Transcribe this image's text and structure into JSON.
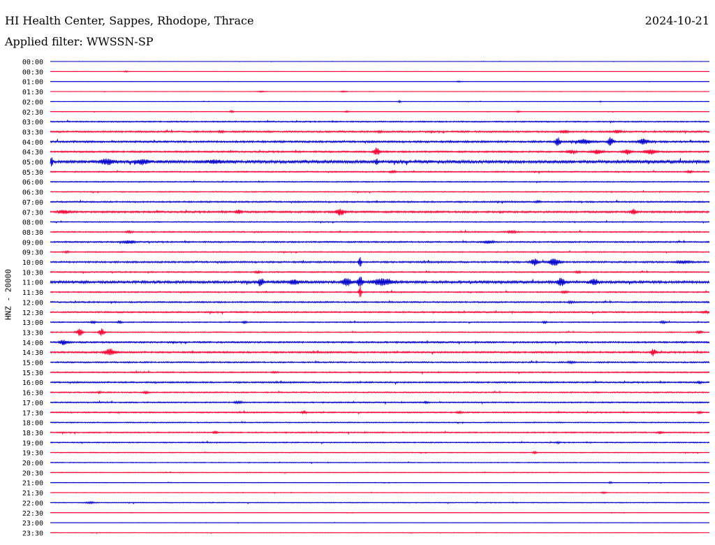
{
  "header": {
    "title": "HI Health Center, Sappes, Rhodope, Thrace",
    "date": "2024-10-21",
    "filter": "Applied filter: WWSSN-SP",
    "ylabel": "HNZ - 20000"
  },
  "chart_data": {
    "type": "line",
    "colors": [
      "#0000cc",
      "#ff0033"
    ],
    "rows": [
      {
        "time": "00:00",
        "noise": 0.3,
        "events": []
      },
      {
        "time": "00:30",
        "noise": 0.3,
        "events": [
          {
            "x": 0.115,
            "amp": 2,
            "w": 0.003
          }
        ]
      },
      {
        "time": "01:00",
        "noise": 0.3,
        "events": [
          {
            "x": 0.62,
            "amp": 1.5,
            "w": 0.004
          }
        ]
      },
      {
        "time": "01:30",
        "noise": 0.4,
        "events": [
          {
            "x": 0.32,
            "amp": 1.5,
            "w": 0.006
          },
          {
            "x": 0.445,
            "amp": 2,
            "w": 0.004
          }
        ]
      },
      {
        "time": "02:00",
        "noise": 0.5,
        "events": [
          {
            "x": 0.53,
            "amp": 3,
            "w": 0.002
          },
          {
            "x": 0.835,
            "amp": 1.5,
            "w": 0.002
          }
        ]
      },
      {
        "time": "02:30",
        "noise": 0.5,
        "events": [
          {
            "x": 0.275,
            "amp": 3,
            "w": 0.003
          },
          {
            "x": 0.45,
            "amp": 2,
            "w": 0.003
          },
          {
            "x": 0.71,
            "amp": 2,
            "w": 0.003
          }
        ]
      },
      {
        "time": "03:00",
        "noise": 1.2,
        "events": []
      },
      {
        "time": "03:30",
        "noise": 1.6,
        "events": [
          {
            "x": 0.26,
            "amp": 3,
            "w": 0.004
          },
          {
            "x": 0.5,
            "amp": 3,
            "w": 0.003
          },
          {
            "x": 0.78,
            "amp": 4,
            "w": 0.006
          },
          {
            "x": 0.86,
            "amp": 4,
            "w": 0.006
          }
        ]
      },
      {
        "time": "04:00",
        "noise": 1.8,
        "events": [
          {
            "x": 0.77,
            "amp": 12,
            "w": 0.004
          },
          {
            "x": 0.81,
            "amp": 6,
            "w": 0.01
          },
          {
            "x": 0.85,
            "amp": 12,
            "w": 0.004
          },
          {
            "x": 0.9,
            "amp": 7,
            "w": 0.008
          }
        ]
      },
      {
        "time": "04:30",
        "noise": 1.6,
        "events": [
          {
            "x": 0.495,
            "amp": 14,
            "w": 0.004
          },
          {
            "x": 0.79,
            "amp": 5,
            "w": 0.006
          },
          {
            "x": 0.83,
            "amp": 6,
            "w": 0.008
          },
          {
            "x": 0.875,
            "amp": 7,
            "w": 0.006
          },
          {
            "x": 0.91,
            "amp": 8,
            "w": 0.008
          }
        ]
      },
      {
        "time": "05:00",
        "noise": 3.0,
        "events": [
          {
            "x": 0.002,
            "amp": 12,
            "w": 0.002
          },
          {
            "x": 0.086,
            "amp": 7,
            "w": 0.01
          },
          {
            "x": 0.14,
            "amp": 7,
            "w": 0.01
          },
          {
            "x": 0.25,
            "amp": 4,
            "w": 0.01
          },
          {
            "x": 0.495,
            "amp": 9,
            "w": 0.002
          }
        ]
      },
      {
        "time": "05:30",
        "noise": 1.2,
        "events": [
          {
            "x": 0.52,
            "amp": 4,
            "w": 0.004
          },
          {
            "x": 0.97,
            "amp": 3,
            "w": 0.004
          }
        ]
      },
      {
        "time": "06:00",
        "noise": 1.0,
        "events": []
      },
      {
        "time": "06:30",
        "noise": 1.0,
        "events": []
      },
      {
        "time": "07:00",
        "noise": 1.4,
        "events": [
          {
            "x": 0.74,
            "amp": 3,
            "w": 0.003
          }
        ]
      },
      {
        "time": "07:30",
        "noise": 1.8,
        "events": [
          {
            "x": 0.02,
            "amp": 5,
            "w": 0.008
          },
          {
            "x": 0.285,
            "amp": 6,
            "w": 0.004
          },
          {
            "x": 0.44,
            "amp": 10,
            "w": 0.006
          },
          {
            "x": 0.885,
            "amp": 8,
            "w": 0.004
          }
        ]
      },
      {
        "time": "08:00",
        "noise": 1.0,
        "events": []
      },
      {
        "time": "08:30",
        "noise": 1.2,
        "events": [
          {
            "x": 0.12,
            "amp": 3,
            "w": 0.004
          },
          {
            "x": 0.7,
            "amp": 3,
            "w": 0.008
          }
        ]
      },
      {
        "time": "09:00",
        "noise": 1.4,
        "events": [
          {
            "x": 0.12,
            "amp": 5,
            "w": 0.008
          },
          {
            "x": 0.665,
            "amp": 4,
            "w": 0.008
          }
        ]
      },
      {
        "time": "09:30",
        "noise": 1.0,
        "events": [
          {
            "x": 0.025,
            "amp": 3,
            "w": 0.003
          }
        ]
      },
      {
        "time": "10:00",
        "noise": 1.6,
        "events": [
          {
            "x": 0.47,
            "amp": 18,
            "w": 0.002
          },
          {
            "x": 0.735,
            "amp": 9,
            "w": 0.006
          },
          {
            "x": 0.765,
            "amp": 10,
            "w": 0.008
          },
          {
            "x": 0.96,
            "amp": 4,
            "w": 0.01
          }
        ]
      },
      {
        "time": "10:30",
        "noise": 1.2,
        "events": [
          {
            "x": 0.315,
            "amp": 3,
            "w": 0.004
          },
          {
            "x": 0.8,
            "amp": 3,
            "w": 0.004
          }
        ]
      },
      {
        "time": "11:00",
        "noise": 2.4,
        "events": [
          {
            "x": 0.32,
            "amp": 12,
            "w": 0.004
          },
          {
            "x": 0.37,
            "amp": 7,
            "w": 0.008
          },
          {
            "x": 0.45,
            "amp": 14,
            "w": 0.006
          },
          {
            "x": 0.47,
            "amp": 16,
            "w": 0.004
          },
          {
            "x": 0.505,
            "amp": 10,
            "w": 0.014
          },
          {
            "x": 0.775,
            "amp": 10,
            "w": 0.006
          },
          {
            "x": 0.825,
            "amp": 8,
            "w": 0.006
          }
        ]
      },
      {
        "time": "11:30",
        "noise": 1.2,
        "events": [
          {
            "x": 0.47,
            "amp": 20,
            "w": 0.002
          },
          {
            "x": 0.78,
            "amp": 4,
            "w": 0.004
          }
        ]
      },
      {
        "time": "12:00",
        "noise": 1.4,
        "events": [
          {
            "x": 0.79,
            "amp": 3,
            "w": 0.004
          }
        ]
      },
      {
        "time": "12:30",
        "noise": 1.4,
        "events": [
          {
            "x": 0.995,
            "amp": 4,
            "w": 0.004
          }
        ]
      },
      {
        "time": "13:00",
        "noise": 1.0,
        "events": [
          {
            "x": 0.065,
            "amp": 3,
            "w": 0.004
          },
          {
            "x": 0.105,
            "amp": 4,
            "w": 0.003
          },
          {
            "x": 0.295,
            "amp": 3,
            "w": 0.003
          },
          {
            "x": 0.75,
            "amp": 3,
            "w": 0.003
          },
          {
            "x": 0.93,
            "amp": 3,
            "w": 0.004
          }
        ]
      },
      {
        "time": "13:30",
        "noise": 1.0,
        "events": [
          {
            "x": 0.045,
            "amp": 12,
            "w": 0.004
          },
          {
            "x": 0.078,
            "amp": 10,
            "w": 0.004
          },
          {
            "x": 0.985,
            "amp": 4,
            "w": 0.004
          }
        ]
      },
      {
        "time": "14:00",
        "noise": 1.6,
        "events": [
          {
            "x": 0.02,
            "amp": 7,
            "w": 0.006
          }
        ]
      },
      {
        "time": "14:30",
        "noise": 1.6,
        "events": [
          {
            "x": 0.09,
            "amp": 9,
            "w": 0.008
          },
          {
            "x": 0.915,
            "amp": 10,
            "w": 0.004
          }
        ]
      },
      {
        "time": "15:00",
        "noise": 1.4,
        "events": [
          {
            "x": 0.79,
            "amp": 3,
            "w": 0.004
          }
        ]
      },
      {
        "time": "15:30",
        "noise": 1.2,
        "events": [
          {
            "x": 0.34,
            "amp": 2,
            "w": 0.004
          }
        ]
      },
      {
        "time": "16:00",
        "noise": 1.4,
        "events": [
          {
            "x": 0.985,
            "amp": 4,
            "w": 0.003
          }
        ]
      },
      {
        "time": "16:30",
        "noise": 1.2,
        "events": [
          {
            "x": 0.145,
            "amp": 4,
            "w": 0.003
          },
          {
            "x": 0.075,
            "amp": 3,
            "w": 0.003
          }
        ]
      },
      {
        "time": "17:00",
        "noise": 1.2,
        "events": [
          {
            "x": 0.285,
            "amp": 3,
            "w": 0.006
          },
          {
            "x": 0.57,
            "amp": 3,
            "w": 0.003
          }
        ]
      },
      {
        "time": "17:30",
        "noise": 1.2,
        "events": [
          {
            "x": 0.385,
            "amp": 5,
            "w": 0.003
          },
          {
            "x": 0.62,
            "amp": 3,
            "w": 0.004
          },
          {
            "x": 0.985,
            "amp": 3,
            "w": 0.003
          }
        ]
      },
      {
        "time": "18:00",
        "noise": 1.0,
        "events": []
      },
      {
        "time": "18:30",
        "noise": 1.2,
        "events": [
          {
            "x": 0.25,
            "amp": 4,
            "w": 0.003
          },
          {
            "x": 0.925,
            "amp": 3,
            "w": 0.003
          }
        ]
      },
      {
        "time": "19:00",
        "noise": 1.0,
        "events": [
          {
            "x": 0.77,
            "amp": 2,
            "w": 0.003
          }
        ]
      },
      {
        "time": "19:30",
        "noise": 0.8,
        "events": [
          {
            "x": 0.735,
            "amp": 4,
            "w": 0.003
          }
        ]
      },
      {
        "time": "20:00",
        "noise": 0.8,
        "events": []
      },
      {
        "time": "20:30",
        "noise": 0.7,
        "events": []
      },
      {
        "time": "21:00",
        "noise": 0.6,
        "events": [
          {
            "x": 0.85,
            "amp": 2,
            "w": 0.003
          }
        ]
      },
      {
        "time": "21:30",
        "noise": 0.6,
        "events": [
          {
            "x": 0.84,
            "amp": 2,
            "w": 0.004
          }
        ]
      },
      {
        "time": "22:00",
        "noise": 0.8,
        "events": [
          {
            "x": 0.06,
            "amp": 2,
            "w": 0.008
          }
        ]
      },
      {
        "time": "22:30",
        "noise": 0.5,
        "events": []
      },
      {
        "time": "23:00",
        "noise": 0.4,
        "events": []
      },
      {
        "time": "23:30",
        "noise": 0.6,
        "events": []
      }
    ]
  }
}
